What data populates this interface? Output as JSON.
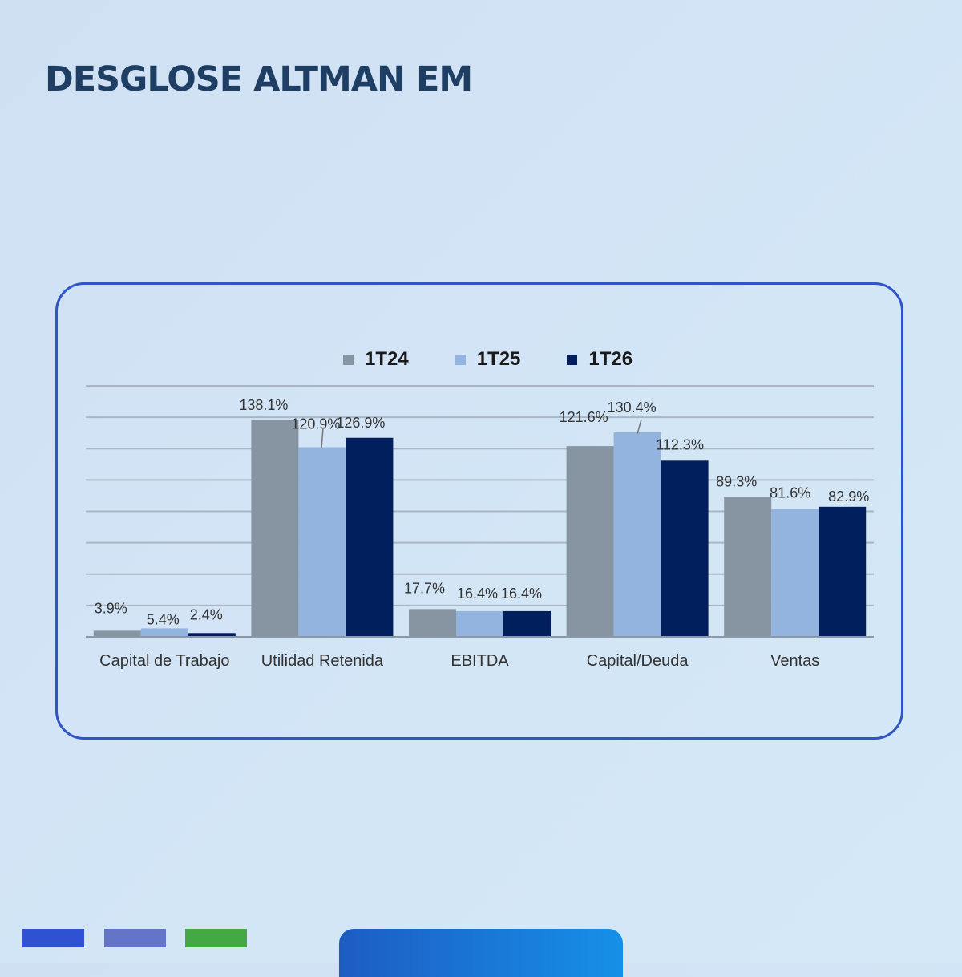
{
  "page": {
    "title": "DESGLOSE ALTMAN EM"
  },
  "colors": {
    "title": "#1e3e64",
    "card_border": "#2f55c8",
    "grid": "#aab6c6",
    "axis": "#8c98a8",
    "bottom_bars": [
      "#2e52d2",
      "#6475c8",
      "#46a844"
    ],
    "bottom_tab": [
      "#1e5cc2",
      "#1590e8"
    ]
  },
  "chart_data": {
    "type": "bar",
    "title": "",
    "xlabel": "",
    "ylabel": "",
    "categories": [
      "Capital de Trabajo",
      "Utilidad Retenida",
      "EBITDA",
      "Capital/Deuda",
      "Ventas"
    ],
    "series": [
      {
        "name": "1T24",
        "color": "#8795a2",
        "values": [
          3.9,
          138.1,
          17.7,
          121.6,
          89.3
        ],
        "labels": [
          "3.9%",
          "138.1%",
          "17.7%",
          "121.6%",
          "89.3%"
        ]
      },
      {
        "name": "1T25",
        "color": "#94b4e0",
        "values": [
          5.4,
          120.9,
          16.4,
          130.4,
          81.6
        ],
        "labels": [
          "5.4%",
          "120.9%",
          "16.4%",
          "130.4%",
          "81.6%"
        ]
      },
      {
        "name": "1T26",
        "color": "#001f5c",
        "values": [
          2.4,
          126.9,
          16.4,
          112.3,
          82.9
        ],
        "labels": [
          "2.4%",
          "126.9%",
          "16.4%",
          "112.3%",
          "82.9%"
        ]
      }
    ],
    "ylim": [
      0,
      160
    ],
    "grid": true,
    "y_tick_labels_visible": false,
    "legend_position": "top-center"
  }
}
